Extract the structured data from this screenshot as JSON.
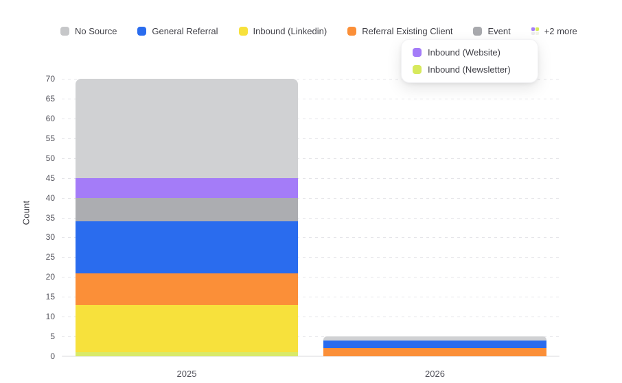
{
  "legend": {
    "items": [
      {
        "label": "No Source",
        "color": "#c6c7c9"
      },
      {
        "label": "General Referral",
        "color": "#2a6cee"
      },
      {
        "label": "Inbound (Linkedin)",
        "color": "#f7e13c"
      },
      {
        "label": "Referral Existing Client",
        "color": "#fb8f38"
      },
      {
        "label": "Event",
        "color": "#a8a9ad"
      }
    ],
    "more_label": "+2 more",
    "more_dot_colors": [
      "#a47cf8",
      "#d7e95c",
      "#ebebed",
      "#f2f3e8"
    ]
  },
  "legend_popup": {
    "items": [
      {
        "label": "Inbound (Website)",
        "color": "#a47cf8"
      },
      {
        "label": "Inbound (Newsletter)",
        "color": "#d7e95c"
      }
    ]
  },
  "chart_data": {
    "type": "bar",
    "stacked": true,
    "title": "",
    "xlabel": "",
    "ylabel": "Count",
    "ylim": [
      0,
      70
    ],
    "ytick_step": 5,
    "grid": "horizontal-dashed",
    "legend_position": "top",
    "categories": [
      "2025",
      "2026"
    ],
    "series": [
      {
        "name": "Inbound (Newsletter)",
        "color": "#d9ea68",
        "values": [
          1,
          0
        ]
      },
      {
        "name": "Inbound (Linkedin)",
        "color": "#f7e13c",
        "values": [
          12,
          0
        ]
      },
      {
        "name": "Referral Existing Client",
        "color": "#fb8f38",
        "values": [
          8,
          2
        ]
      },
      {
        "name": "General Referral",
        "color": "#2a6cee",
        "values": [
          13,
          2
        ]
      },
      {
        "name": "Event",
        "color": "#acadb1",
        "values": [
          6,
          0
        ]
      },
      {
        "name": "Inbound (Website)",
        "color": "#a47cf8",
        "values": [
          5,
          0
        ]
      },
      {
        "name": "No Source",
        "color": "#d0d1d3",
        "values": [
          25,
          1
        ]
      }
    ],
    "totals": [
      70,
      5
    ]
  }
}
